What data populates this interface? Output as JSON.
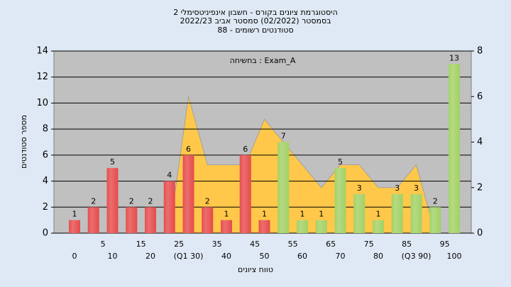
{
  "chart_data": {
    "type": "bar",
    "title": [
      "היסטוגרמת ציונים בקורס - חשבון אינפיניטסימלי 2",
      "בסמסטר (02/2022) סמסטר אביב 2022/23",
      "סטודנטים רשומים - 88"
    ],
    "annotation": "בחשיחה : Exam_A",
    "x_label": "טווח ציונים",
    "y_label": "מספר סטודנטים",
    "categories": [
      "0",
      "5",
      "10",
      "15",
      "20",
      "25",
      "(Q1 30)",
      "35",
      "40",
      "45",
      "50",
      "55",
      "60",
      "65",
      "70",
      "75",
      "80",
      "85",
      "(Q3 90)",
      "95",
      "100"
    ],
    "values": [
      1,
      2,
      5,
      2,
      2,
      4,
      6,
      2,
      1,
      6,
      1,
      7,
      1,
      1,
      5,
      3,
      1,
      3,
      3,
      2,
      13
    ],
    "colors": [
      "#e02020",
      "#e02020",
      "#e02020",
      "#e02020",
      "#e02020",
      "#e02020",
      "#e02020",
      "#e02020",
      "#e02020",
      "#e02020",
      "#e02020",
      "#8cc63f",
      "#8cc63f",
      "#8cc63f",
      "#8cc63f",
      "#8cc63f",
      "#8cc63f",
      "#8cc63f",
      "#8cc63f",
      "#8cc63f",
      "#8cc63f"
    ],
    "ylim": [
      0,
      14
    ],
    "yticks": [
      0,
      2,
      4,
      6,
      8,
      10,
      12,
      14
    ],
    "area": {
      "axis": "y2",
      "color": "#ffc84a",
      "values": [
        null,
        null,
        null,
        null,
        null,
        0,
        6,
        3,
        3,
        3,
        5,
        4,
        3,
        2,
        3,
        3,
        2,
        2,
        3,
        0,
        null
      ]
    },
    "y2lim": [
      0,
      8
    ],
    "y2ticks": [
      0,
      2,
      4,
      6,
      8
    ],
    "grid": true
  }
}
